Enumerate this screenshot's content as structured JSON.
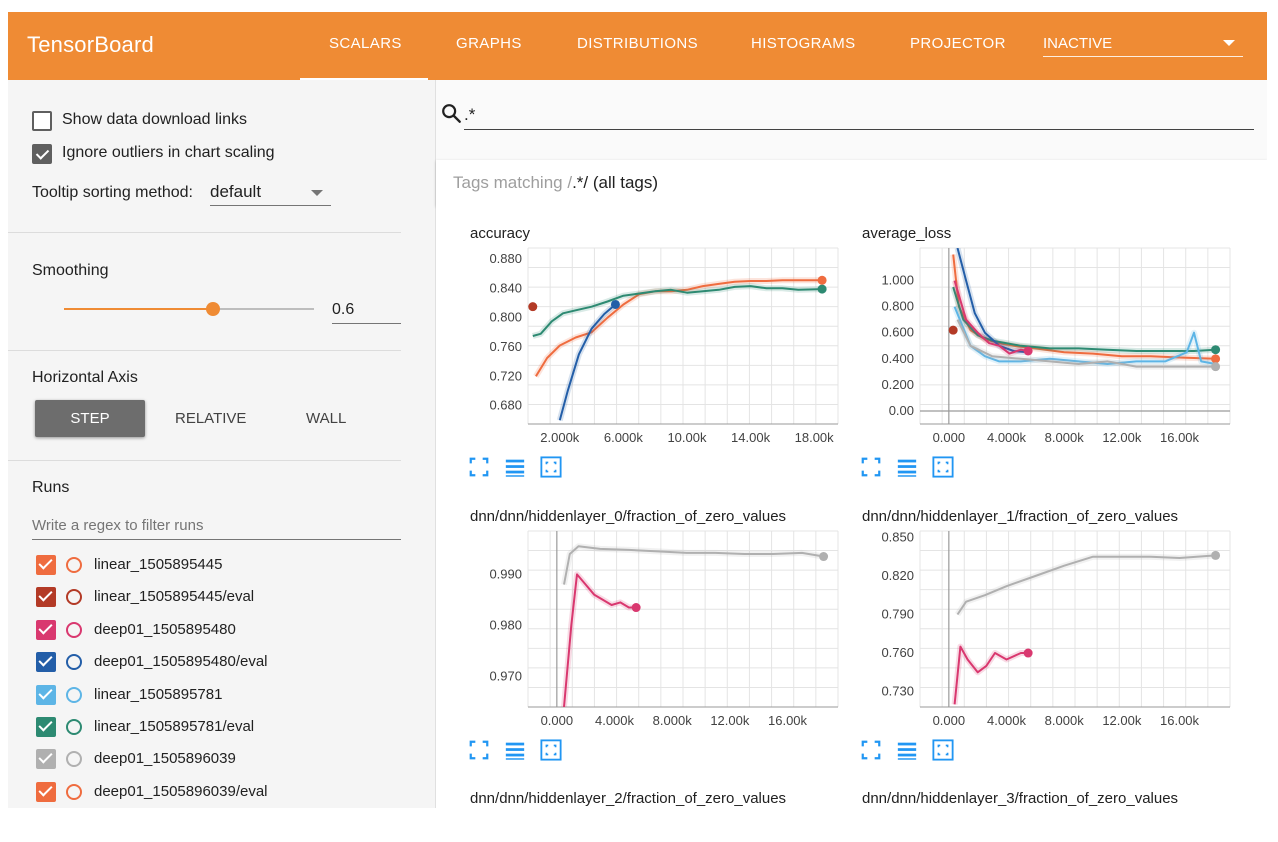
{
  "header": {
    "brand": "TensorBoard",
    "tabs": [
      "SCALARS",
      "GRAPHS",
      "DISTRIBUTIONS",
      "HISTOGRAMS",
      "PROJECTOR"
    ],
    "inactive_label": "INACTIVE"
  },
  "sidebar": {
    "show_download_links": "Show data download links",
    "ignore_outliers": "Ignore outliers in chart scaling",
    "tooltip_label": "Tooltip sorting method:",
    "tooltip_value": "default",
    "smoothing_label": "Smoothing",
    "smoothing_value": "0.6",
    "smoothing_fraction": 0.6,
    "horizontal_axis_label": "Horizontal Axis",
    "axis_buttons": [
      "STEP",
      "RELATIVE",
      "WALL"
    ],
    "runs_label": "Runs",
    "runs_filter_placeholder": "Write a regex to filter runs",
    "runs": [
      {
        "name": "linear_1505895445",
        "color": "#ef6c3f"
      },
      {
        "name": "linear_1505895445/eval",
        "color": "#b33a26"
      },
      {
        "name": "deep01_1505895480",
        "color": "#d9386f"
      },
      {
        "name": "deep01_1505895480/eval",
        "color": "#235ea8"
      },
      {
        "name": "linear_1505895781",
        "color": "#5db5e6"
      },
      {
        "name": "linear_1505895781/eval",
        "color": "#2d8a72"
      },
      {
        "name": "deep01_1505896039",
        "color": "#b0b0b0"
      },
      {
        "name": "deep01_1505896039/eval",
        "color": "#ef6c3f"
      }
    ]
  },
  "main": {
    "search_value": ".*",
    "tags_prefix": "Tags matching /",
    "tags_regex": ".*",
    "tags_suffix": "/ (all tags)"
  },
  "chart_data": [
    {
      "type": "line",
      "title": "accuracy",
      "xlim": [
        0,
        19500
      ],
      "ylim": [
        0.655,
        0.895
      ],
      "xticks": [
        "2.000k",
        "6.000k",
        "10.00k",
        "14.00k",
        "18.00k"
      ],
      "xtick_values": [
        2000,
        6000,
        10000,
        14000,
        18000
      ],
      "yticks": [
        "0.880",
        "0.840",
        "0.800",
        "0.760",
        "0.720",
        "0.680"
      ],
      "ytick_values": [
        0.88,
        0.84,
        0.8,
        0.76,
        0.72,
        0.68
      ],
      "series": [
        {
          "color": "#ef6c3f",
          "points": [
            [
              500,
              0.72
            ],
            [
              1200,
              0.745
            ],
            [
              2000,
              0.762
            ],
            [
              3000,
              0.773
            ],
            [
              4000,
              0.78
            ],
            [
              5000,
              0.8
            ],
            [
              6000,
              0.818
            ],
            [
              7000,
              0.832
            ],
            [
              8000,
              0.836
            ],
            [
              9000,
              0.836
            ],
            [
              10000,
              0.838
            ],
            [
              11000,
              0.843
            ],
            [
              12000,
              0.846
            ],
            [
              13000,
              0.849
            ],
            [
              14000,
              0.85
            ],
            [
              15000,
              0.85
            ],
            [
              16000,
              0.851
            ],
            [
              17000,
              0.851
            ],
            [
              18500,
              0.851
            ]
          ]
        },
        {
          "color": "#2d8a72",
          "points": [
            [
              300,
              0.775
            ],
            [
              800,
              0.778
            ],
            [
              1500,
              0.795
            ],
            [
              2200,
              0.806
            ],
            [
              3000,
              0.81
            ],
            [
              4000,
              0.815
            ],
            [
              5000,
              0.822
            ],
            [
              6000,
              0.83
            ],
            [
              7000,
              0.833
            ],
            [
              8000,
              0.836
            ],
            [
              9000,
              0.838
            ],
            [
              10000,
              0.834
            ],
            [
              11000,
              0.836
            ],
            [
              12000,
              0.838
            ],
            [
              13000,
              0.842
            ],
            [
              14000,
              0.843
            ],
            [
              15000,
              0.84
            ],
            [
              16000,
              0.84
            ],
            [
              17000,
              0.838
            ],
            [
              18500,
              0.839
            ]
          ]
        },
        {
          "color": "#235ea8",
          "points": [
            [
              2000,
              0.66
            ],
            [
              2500,
              0.7
            ],
            [
              3200,
              0.75
            ],
            [
              4000,
              0.785
            ],
            [
              4800,
              0.805
            ],
            [
              5500,
              0.818
            ]
          ]
        }
      ],
      "markers": [
        {
          "x": 300,
          "y": 0.815,
          "color": "#b33a26"
        },
        {
          "x": 5500,
          "y": 0.818,
          "color": "#235ea8"
        },
        {
          "x": 18500,
          "y": 0.851,
          "color": "#ef6c3f"
        },
        {
          "x": 18500,
          "y": 0.839,
          "color": "#2d8a72"
        }
      ]
    },
    {
      "type": "line",
      "title": "average_loss",
      "xlim": [
        -2000,
        19500
      ],
      "ylim": [
        -0.1,
        1.25
      ],
      "xticks": [
        "0.000",
        "4.000k",
        "8.000k",
        "12.00k",
        "16.00k"
      ],
      "xtick_values": [
        0,
        4000,
        8000,
        12000,
        16000
      ],
      "yticks": [
        "1.000",
        "0.800",
        "0.600",
        "0.400",
        "0.200",
        "0.00"
      ],
      "ytick_values": [
        1.0,
        0.8,
        0.6,
        0.4,
        0.2,
        0.0
      ],
      "series": [
        {
          "color": "#ef6c3f",
          "points": [
            [
              300,
              1.2
            ],
            [
              700,
              0.8
            ],
            [
              1500,
              0.62
            ],
            [
              2500,
              0.55
            ],
            [
              3500,
              0.52
            ],
            [
              4500,
              0.5
            ],
            [
              6000,
              0.48
            ],
            [
              8000,
              0.45
            ],
            [
              10000,
              0.44
            ],
            [
              12000,
              0.42
            ],
            [
              14000,
              0.42
            ],
            [
              16000,
              0.41
            ],
            [
              18500,
              0.4
            ]
          ]
        },
        {
          "color": "#2d8a72",
          "points": [
            [
              300,
              0.95
            ],
            [
              1000,
              0.7
            ],
            [
              2000,
              0.58
            ],
            [
              3000,
              0.54
            ],
            [
              5000,
              0.5
            ],
            [
              7000,
              0.48
            ],
            [
              9000,
              0.48
            ],
            [
              11000,
              0.47
            ],
            [
              13000,
              0.46
            ],
            [
              15000,
              0.46
            ],
            [
              17000,
              0.46
            ],
            [
              18500,
              0.47
            ]
          ]
        },
        {
          "color": "#235ea8",
          "points": [
            [
              600,
              1.25
            ],
            [
              1200,
              1.0
            ],
            [
              1800,
              0.75
            ],
            [
              2500,
              0.6
            ],
            [
              3500,
              0.5
            ],
            [
              4500,
              0.46
            ],
            [
              5500,
              0.45
            ]
          ]
        },
        {
          "color": "#d9386f",
          "points": [
            [
              400,
              1.0
            ],
            [
              1200,
              0.7
            ],
            [
              2000,
              0.6
            ],
            [
              2800,
              0.52
            ],
            [
              3500,
              0.5
            ],
            [
              4200,
              0.44
            ],
            [
              5000,
              0.47
            ],
            [
              5500,
              0.46
            ]
          ]
        },
        {
          "color": "#5db5e6",
          "points": [
            [
              400,
              0.8
            ],
            [
              1500,
              0.5
            ],
            [
              2500,
              0.42
            ],
            [
              3500,
              0.38
            ],
            [
              5000,
              0.38
            ],
            [
              7000,
              0.4
            ],
            [
              9000,
              0.38
            ],
            [
              11000,
              0.36
            ],
            [
              13000,
              0.38
            ],
            [
              15000,
              0.38
            ],
            [
              16500,
              0.45
            ],
            [
              17000,
              0.6
            ],
            [
              17500,
              0.38
            ],
            [
              18500,
              0.36
            ]
          ]
        },
        {
          "color": "#b0b0b0",
          "points": [
            [
              600,
              0.7
            ],
            [
              1500,
              0.5
            ],
            [
              3000,
              0.42
            ],
            [
              5000,
              0.4
            ],
            [
              7000,
              0.38
            ],
            [
              9000,
              0.36
            ],
            [
              11000,
              0.38
            ],
            [
              13000,
              0.34
            ],
            [
              15000,
              0.34
            ],
            [
              17000,
              0.34
            ],
            [
              18500,
              0.34
            ]
          ]
        }
      ],
      "markers": [
        {
          "x": 300,
          "y": 0.62,
          "color": "#b33a26"
        },
        {
          "x": 5500,
          "y": 0.46,
          "color": "#d9386f"
        },
        {
          "x": 18500,
          "y": 0.47,
          "color": "#2d8a72"
        },
        {
          "x": 18500,
          "y": 0.4,
          "color": "#ef6c3f"
        },
        {
          "x": 18500,
          "y": 0.34,
          "color": "#b0b0b0"
        }
      ]
    },
    {
      "type": "line",
      "title": "dnn/dnn/hiddenlayer_0/fraction_of_zero_values",
      "xlim": [
        -2000,
        19500
      ],
      "ylim": [
        0.964,
        0.9985
      ],
      "xticks": [
        "0.000",
        "4.000k",
        "8.000k",
        "12.00k",
        "16.00k"
      ],
      "xtick_values": [
        0,
        4000,
        8000,
        12000,
        16000
      ],
      "yticks": [
        "0.990",
        "0.980",
        "0.970"
      ],
      "ytick_values": [
        0.99,
        0.98,
        0.97
      ],
      "series": [
        {
          "color": "#b0b0b0",
          "points": [
            [
              500,
              0.988
            ],
            [
              900,
              0.994
            ],
            [
              1500,
              0.9955
            ],
            [
              3000,
              0.995
            ],
            [
              5000,
              0.9948
            ],
            [
              7000,
              0.9945
            ],
            [
              9000,
              0.9942
            ],
            [
              11000,
              0.9942
            ],
            [
              13000,
              0.994
            ],
            [
              15000,
              0.994
            ],
            [
              17000,
              0.9942
            ],
            [
              18500,
              0.9935
            ]
          ]
        },
        {
          "color": "#d9386f",
          "points": [
            [
              500,
              0.964
            ],
            [
              1000,
              0.98
            ],
            [
              1400,
              0.99
            ],
            [
              2000,
              0.988
            ],
            [
              2600,
              0.986
            ],
            [
              3200,
              0.985
            ],
            [
              3800,
              0.984
            ],
            [
              4400,
              0.9845
            ],
            [
              5000,
              0.9835
            ],
            [
              5500,
              0.9835
            ]
          ]
        }
      ],
      "markers": [
        {
          "x": 5500,
          "y": 0.9835,
          "color": "#d9386f"
        },
        {
          "x": 18500,
          "y": 0.9935,
          "color": "#b0b0b0"
        }
      ]
    },
    {
      "type": "line",
      "title": "dnn/dnn/hiddenlayer_1/fraction_of_zero_values",
      "xlim": [
        -2000,
        19500
      ],
      "ylim": [
        0.718,
        0.855
      ],
      "xticks": [
        "0.000",
        "4.000k",
        "8.000k",
        "12.00k",
        "16.00k"
      ],
      "xtick_values": [
        0,
        4000,
        8000,
        12000,
        16000
      ],
      "yticks": [
        "0.850",
        "0.820",
        "0.790",
        "0.760",
        "0.730"
      ],
      "ytick_values": [
        0.85,
        0.82,
        0.79,
        0.76,
        0.73
      ],
      "series": [
        {
          "color": "#b0b0b0",
          "points": [
            [
              600,
              0.79
            ],
            [
              1200,
              0.8
            ],
            [
              2500,
              0.805
            ],
            [
              4000,
              0.812
            ],
            [
              6000,
              0.82
            ],
            [
              8000,
              0.828
            ],
            [
              10000,
              0.835
            ],
            [
              12000,
              0.835
            ],
            [
              14000,
              0.835
            ],
            [
              16000,
              0.834
            ],
            [
              18500,
              0.836
            ]
          ]
        },
        {
          "color": "#d9386f",
          "points": [
            [
              400,
              0.72
            ],
            [
              800,
              0.765
            ],
            [
              1300,
              0.755
            ],
            [
              2000,
              0.745
            ],
            [
              2600,
              0.75
            ],
            [
              3200,
              0.76
            ],
            [
              4000,
              0.755
            ],
            [
              5000,
              0.76
            ],
            [
              5500,
              0.76
            ]
          ]
        }
      ],
      "markers": [
        {
          "x": 5500,
          "y": 0.76,
          "color": "#d9386f"
        },
        {
          "x": 18500,
          "y": 0.836,
          "color": "#b0b0b0"
        }
      ]
    },
    {
      "type": "line",
      "title": "dnn/dnn/hiddenlayer_2/fraction_of_zero_values"
    },
    {
      "type": "line",
      "title": "dnn/dnn/hiddenlayer_3/fraction_of_zero_values"
    }
  ],
  "colors": {
    "header": "#ef8b34",
    "accent": "#ef8b34",
    "toolbar_icon": "#2196f3"
  }
}
